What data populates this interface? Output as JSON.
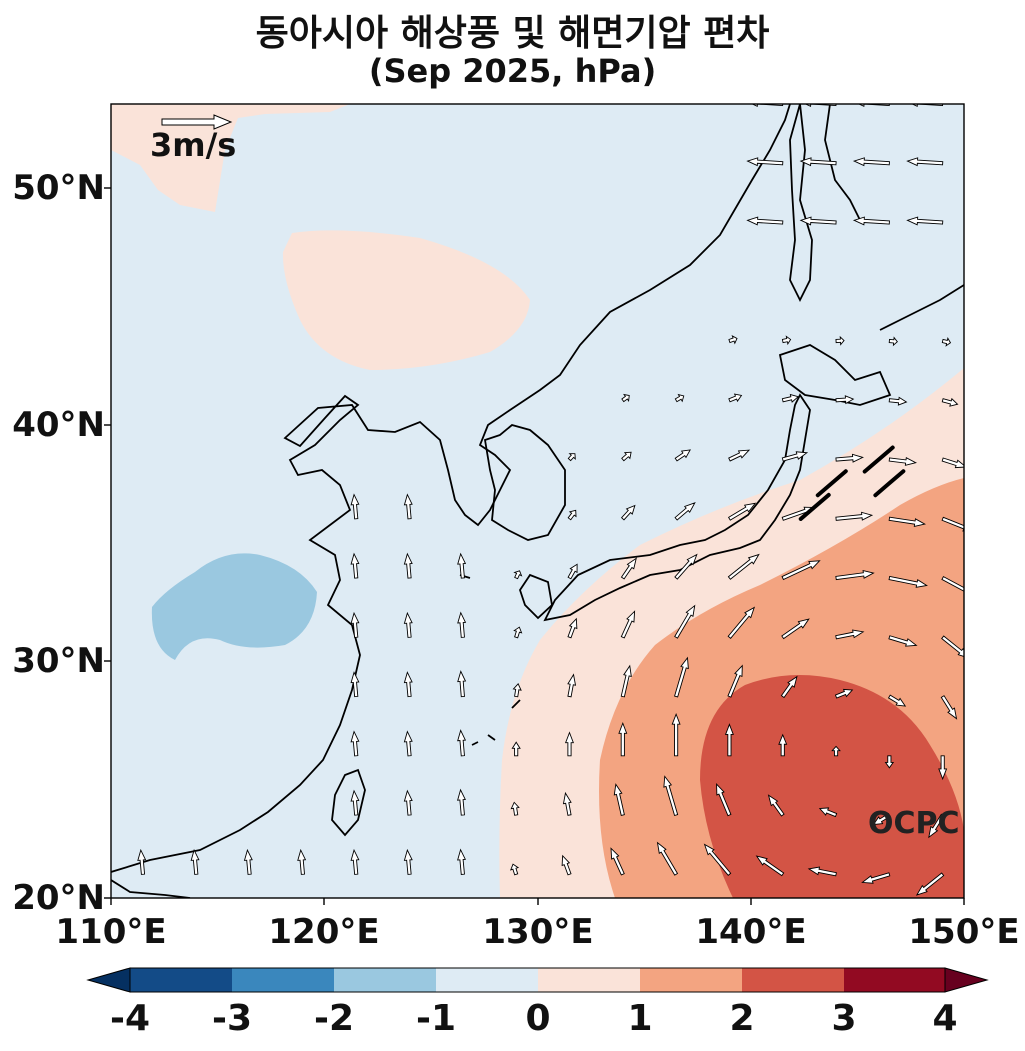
{
  "title": "동아시아 해상풍 및 해면기압 편차",
  "subtitle": "(Sep 2025, hPa)",
  "credit": "OCPC",
  "reference_vector": {
    "label": "3m/s",
    "magnitude": 3
  },
  "colors": {
    "levels": [
      "#134b87",
      "#3a87bd",
      "#9ac8e0",
      "#deebf4",
      "#fae3d9",
      "#f3a481",
      "#d35445",
      "#920a22"
    ],
    "under": "#053061",
    "over": "#67001f",
    "coast": "#000000",
    "arrow_fill": "#ffffff",
    "arrow_edge": "#000000",
    "highlight_arrow": "#000000"
  },
  "chart_data": {
    "type": "heatmap",
    "variable": "sea level pressure anomaly",
    "unit": "hPa",
    "xlim": [
      110,
      150
    ],
    "ylim": [
      20,
      53.5
    ],
    "lat_ticks": [
      "50°N",
      "40°N",
      "30°N",
      "20°N"
    ],
    "lon_ticks": [
      "110°E",
      "120°E",
      "130°E",
      "140°E",
      "150°E"
    ],
    "colorbar": {
      "labels": [
        "-4",
        "-3",
        "-2",
        "-1",
        "0",
        "1",
        "2",
        "3",
        "4"
      ],
      "levels": [
        -4,
        -3,
        -2,
        -1,
        0,
        1,
        2,
        3,
        4
      ],
      "extend": "both"
    },
    "anomaly_regions": [
      {
        "name": "weak positive NW",
        "range": [
          0,
          1
        ],
        "lon": [
          110,
          116
        ],
        "lat": [
          49,
          53.5
        ]
      },
      {
        "name": "weak positive Mongolia",
        "range": [
          0,
          1
        ],
        "lon": [
          118.5,
          130
        ],
        "lat": [
          42.5,
          48
        ]
      },
      {
        "name": "negative China",
        "range": [
          -2,
          -1
        ],
        "lon": [
          111.5,
          119
        ],
        "lat": [
          30,
          35
        ]
      },
      {
        "name": "positive SE",
        "range": [
          0,
          1
        ],
        "lon": [
          128,
          150
        ],
        "lat": [
          20,
          42
        ]
      },
      {
        "name": "positive core",
        "range": [
          1,
          2
        ],
        "lon": [
          133,
          150
        ],
        "lat": [
          20,
          37.5
        ]
      },
      {
        "name": "max high",
        "range": [
          2,
          3
        ],
        "lon": [
          137.5,
          150
        ],
        "lat": [
          20,
          29.5
        ]
      }
    ]
  }
}
